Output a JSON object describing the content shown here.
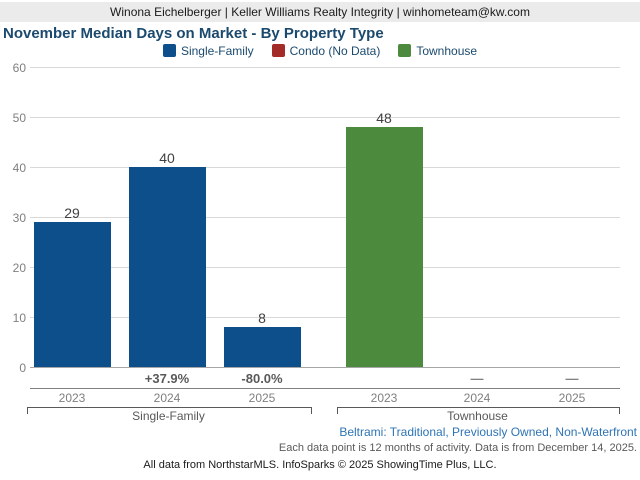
{
  "header": {
    "text": "Winona Eichelberger | Keller Williams Realty Integrity | winhometeam@kw.com"
  },
  "title": "November Median Days on Market - By Property Type",
  "chart_data": {
    "type": "bar",
    "title": "November Median Days on Market - By Property Type",
    "ylabel": "",
    "ylim": [
      0,
      60
    ],
    "yticks": [
      0,
      10,
      20,
      30,
      40,
      50,
      60
    ],
    "grid": true,
    "legend_position": "top-center",
    "legend": [
      {
        "label": "Single-Family",
        "color": "#0d4f8b"
      },
      {
        "label": "Condo (No Data)",
        "color": "#a32b28"
      },
      {
        "label": "Townhouse",
        "color": "#4c8b3d"
      }
    ],
    "groups": [
      {
        "name": "Single-Family",
        "color": "#0d4f8b",
        "bars": [
          {
            "year": "2023",
            "value": 29,
            "change": null
          },
          {
            "year": "2024",
            "value": 40,
            "change": "+37.9%"
          },
          {
            "year": "2025",
            "value": 8,
            "change": "-80.0%"
          }
        ]
      },
      {
        "name": "Townhouse",
        "color": "#4c8b3d",
        "bars": [
          {
            "year": "2023",
            "value": 48,
            "change": null
          },
          {
            "year": "2024",
            "value": null,
            "change": "—"
          },
          {
            "year": "2025",
            "value": null,
            "change": "—"
          }
        ]
      }
    ]
  },
  "footer": {
    "filter_note": "Beltrami: Traditional, Previously Owned, Non-Waterfront",
    "data_note": "Each data point is 12 months of activity. Data is from December 14, 2025.",
    "attribution": "All data from NorthstarMLS. InfoSparks © 2025 ShowingTime Plus, LLC."
  },
  "colors": {
    "title": "#1b4a6e",
    "link": "#2e74b5",
    "header_band": "#ebebeb",
    "gridline": "#d9d9d9",
    "tick_text": "#7f7f7f"
  }
}
